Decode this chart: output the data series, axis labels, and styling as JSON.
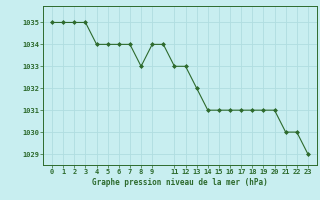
{
  "x": [
    0,
    1,
    2,
    3,
    4,
    5,
    6,
    7,
    8,
    9,
    10,
    11,
    12,
    13,
    14,
    15,
    16,
    17,
    18,
    19,
    20,
    21,
    22,
    23
  ],
  "y": [
    1035,
    1035,
    1035,
    1035,
    1034,
    1034,
    1034,
    1034,
    1033,
    1034,
    1034,
    1033,
    1033,
    1032,
    1031,
    1031,
    1031,
    1031,
    1031,
    1031,
    1031,
    1030,
    1030,
    1029
  ],
  "line_color": "#2d6a2d",
  "bg_color": "#c8eef0",
  "grid_color": "#b0dde0",
  "xlabel": "Graphe pression niveau de la mer (hPa)",
  "xlabel_color": "#2d6a2d",
  "tick_color": "#2d6a2d",
  "ylim": [
    1028.5,
    1035.75
  ],
  "yticks": [
    1029,
    1030,
    1031,
    1032,
    1033,
    1034,
    1035
  ],
  "xticks": [
    0,
    1,
    2,
    3,
    4,
    5,
    6,
    7,
    8,
    9,
    11,
    12,
    13,
    14,
    15,
    16,
    17,
    18,
    19,
    20,
    21,
    22,
    23
  ],
  "xtick_labels": [
    "0",
    "1",
    "2",
    "3",
    "4",
    "5",
    "6",
    "7",
    "8",
    "9",
    "11",
    "12",
    "13",
    "14",
    "15",
    "16",
    "17",
    "18",
    "19",
    "20",
    "21",
    "22",
    "23"
  ]
}
